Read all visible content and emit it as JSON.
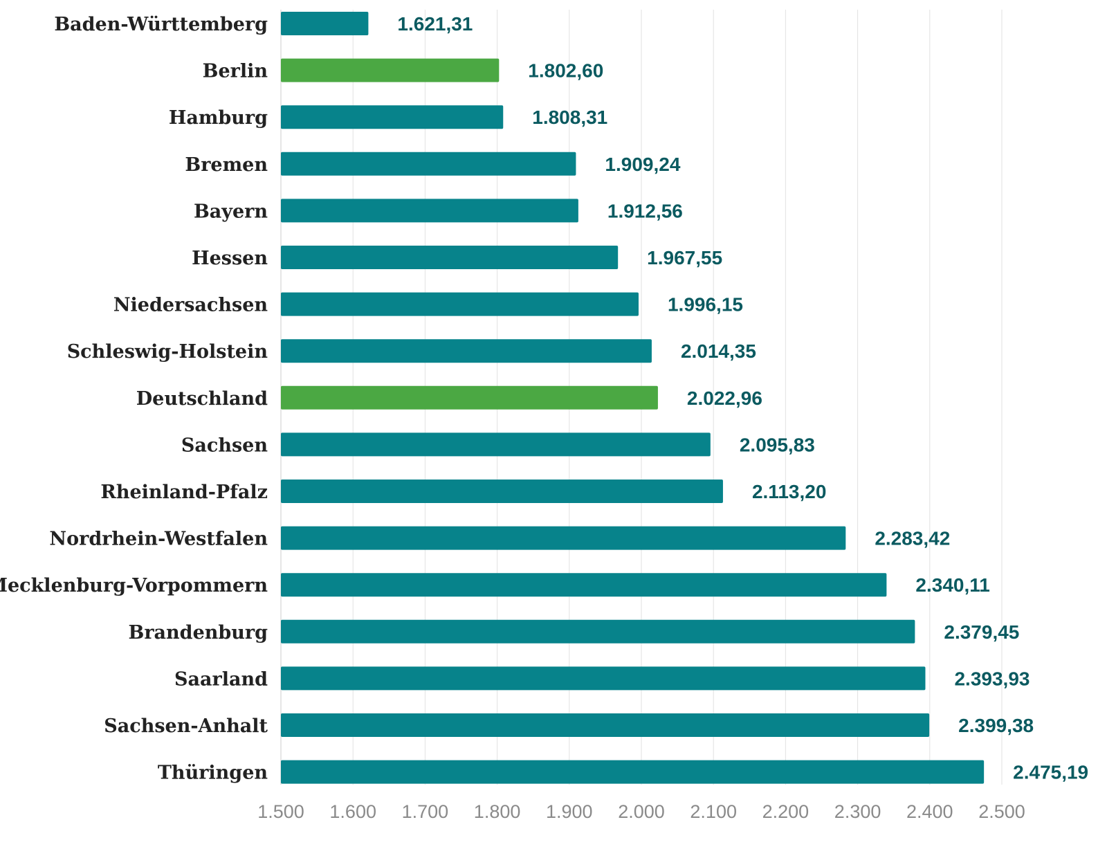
{
  "chart_data": {
    "type": "bar",
    "orientation": "horizontal",
    "categories": [
      "Baden-Württemberg",
      "Berlin",
      "Hamburg",
      "Bremen",
      "Bayern",
      "Hessen",
      "Niedersachsen",
      "Schleswig-Holstein",
      "Deutschland",
      "Sachsen",
      "Rheinland-Pfalz",
      "Nordrhein-Westfalen",
      "Mecklenburg-Vorpommern",
      "Brandenburg",
      "Saarland",
      "Sachsen-Anhalt",
      "Thüringen"
    ],
    "values": [
      1621.31,
      1802.6,
      1808.31,
      1909.24,
      1912.56,
      1967.55,
      1996.15,
      2014.35,
      2022.96,
      2095.83,
      2113.2,
      2283.42,
      2340.11,
      2379.45,
      2393.93,
      2399.38,
      2475.19
    ],
    "value_labels": [
      "1.621,31",
      "1.802,60",
      "1.808,31",
      "1.909,24",
      "1.912,56",
      "1.967,55",
      "1.996,15",
      "2.014,35",
      "2.022,96",
      "2.095,83",
      "2.113,20",
      "2.283,42",
      "2.340,11",
      "2.379,45",
      "2.393,93",
      "2.399,38",
      "2.475,19"
    ],
    "highlighted": [
      "Berlin",
      "Deutschland"
    ],
    "xlim": [
      1500,
      2500
    ],
    "x_ticks": [
      1500,
      1600,
      1700,
      1800,
      1900,
      2000,
      2100,
      2200,
      2300,
      2400,
      2500
    ],
    "x_tick_labels": [
      "1.500",
      "1.600",
      "1.700",
      "1.800",
      "1.900",
      "2.000",
      "2.100",
      "2.200",
      "2.300",
      "2.400",
      "2.500"
    ],
    "grid": "vertical",
    "legend": "none",
    "colors": {
      "bar": "#07838b",
      "highlight": "#4ba843",
      "value_label": "#0b5a60"
    }
  }
}
